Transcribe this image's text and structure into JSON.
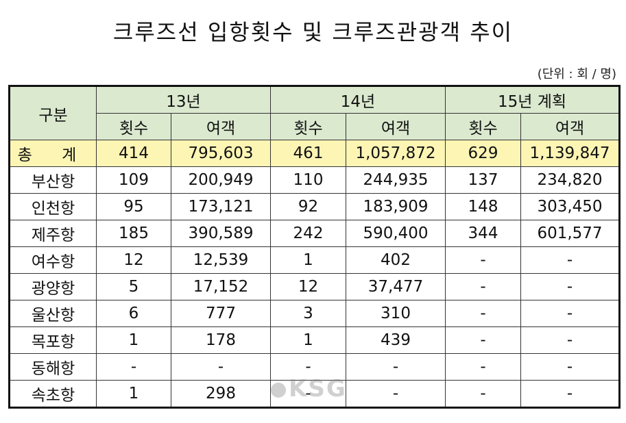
{
  "title": "크루즈선 입항횟수 및 크루즈관광객 추이",
  "unit": "(단위 : 회 / 명)",
  "header": {
    "category": "구분",
    "years": [
      "13년",
      "14년",
      "15년 계획"
    ],
    "sub": [
      "횟수",
      "여객",
      "횟수",
      "여객",
      "횟수",
      "여객"
    ]
  },
  "total": {
    "label": "총 계",
    "values": [
      "414",
      "795,603",
      "461",
      "1,057,872",
      "629",
      "1,139,847"
    ]
  },
  "rows": [
    {
      "label": "부산항",
      "values": [
        "109",
        "200,949",
        "110",
        "244,935",
        "137",
        "234,820"
      ]
    },
    {
      "label": "인천항",
      "values": [
        "95",
        "173,121",
        "92",
        "183,909",
        "148",
        "303,450"
      ]
    },
    {
      "label": "제주항",
      "values": [
        "185",
        "390,589",
        "242",
        "590,400",
        "344",
        "601,577"
      ]
    },
    {
      "label": "여수항",
      "values": [
        "12",
        "12,539",
        "1",
        "402",
        "-",
        "-"
      ]
    },
    {
      "label": "광양항",
      "values": [
        "5",
        "17,152",
        "12",
        "37,477",
        "-",
        "-"
      ]
    },
    {
      "label": "울산항",
      "values": [
        "6",
        "777",
        "3",
        "310",
        "-",
        "-"
      ]
    },
    {
      "label": "목포항",
      "values": [
        "1",
        "178",
        "1",
        "439",
        "-",
        "-"
      ]
    },
    {
      "label": "동해항",
      "values": [
        "-",
        "-",
        "-",
        "-",
        "-",
        "-"
      ]
    },
    {
      "label": "속초항",
      "values": [
        "1",
        "298",
        "-",
        "-",
        "-",
        "-"
      ]
    }
  ],
  "watermark": "KSG"
}
